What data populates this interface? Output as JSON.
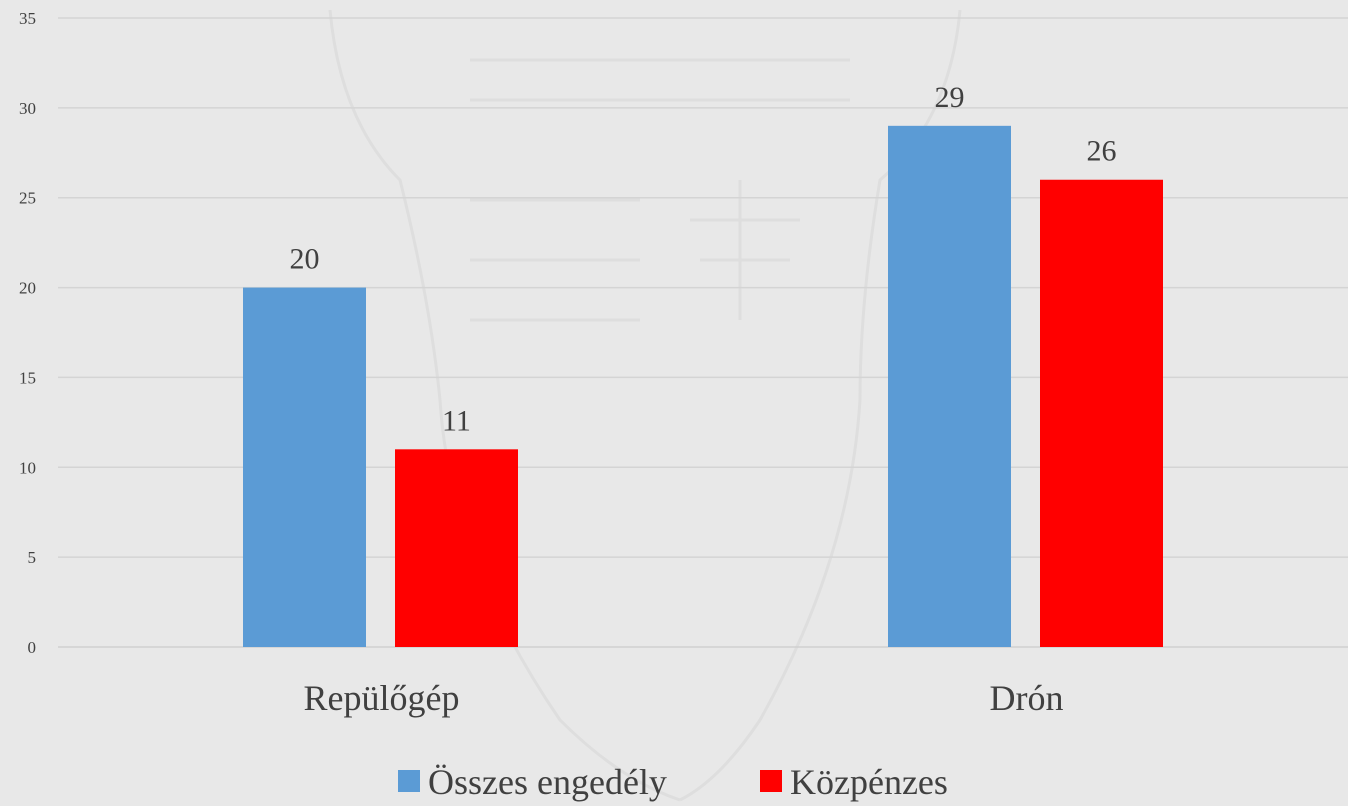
{
  "chart_data": {
    "type": "bar",
    "categories": [
      "Repülőgép",
      "Drón"
    ],
    "series": [
      {
        "name": "Összes engedély",
        "values": [
          20,
          29
        ],
        "color": "#5b9bd5"
      },
      {
        "name": "Közpénzes",
        "values": [
          11,
          26
        ],
        "color": "#ff0000"
      }
    ],
    "ylim": [
      0,
      35
    ],
    "yticks": [
      0,
      5,
      10,
      15,
      20,
      25,
      30,
      35
    ],
    "grid": true,
    "data_labels": true,
    "legend_position": "bottom",
    "title": "",
    "xlabel": "",
    "ylabel": ""
  }
}
